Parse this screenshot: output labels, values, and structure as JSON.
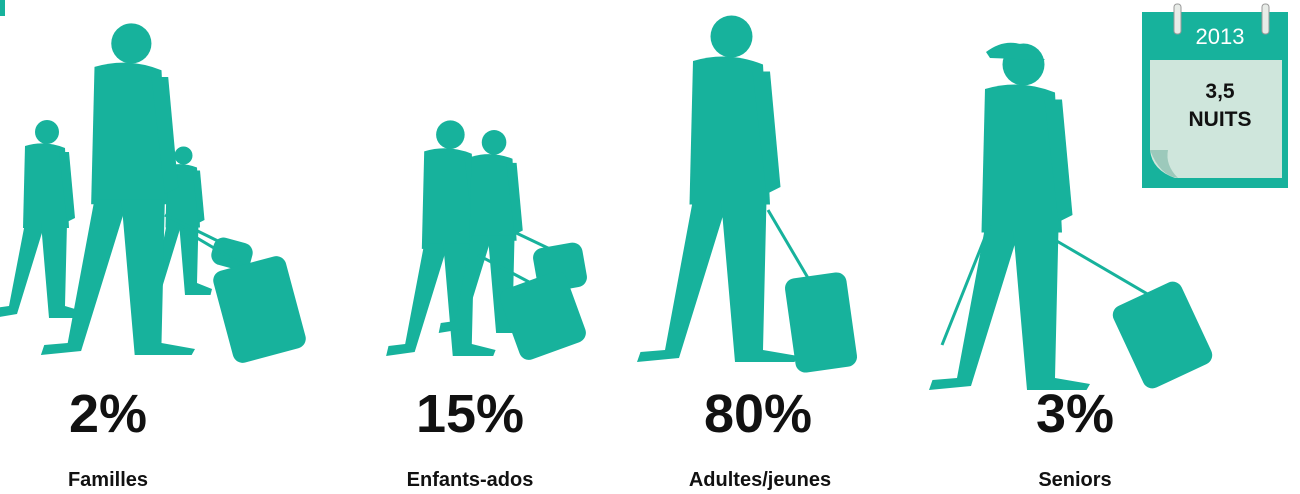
{
  "groups": [
    {
      "percent": "2%",
      "label": "Familles"
    },
    {
      "percent": "15%",
      "label": "Enfants-ados"
    },
    {
      "percent": "80%",
      "label": "Adultes/jeunes"
    },
    {
      "percent": "3%",
      "label": "Seniors"
    }
  ],
  "calendar": {
    "year": "2013",
    "value": "3,5",
    "unit": "NUITS"
  }
}
